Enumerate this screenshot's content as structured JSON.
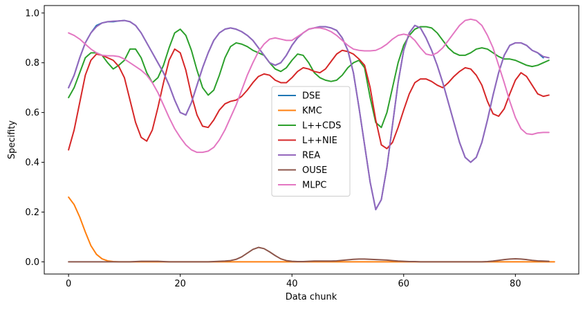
{
  "chart_data": {
    "type": "line",
    "xlabel": "Data chunk",
    "ylabel": "Specifity",
    "xlim": [
      -4.35,
      91.35
    ],
    "ylim": [
      -0.049,
      1.03
    ],
    "xticks": [
      0,
      20,
      40,
      60,
      80
    ],
    "yticks": [
      0.0,
      0.2,
      0.4,
      0.6,
      0.8,
      1.0
    ],
    "ytick_labels": [
      "0.0",
      "0.2",
      "0.4",
      "0.6",
      "0.8",
      "1.0"
    ],
    "grid": false,
    "legend_position": "center",
    "series": [
      {
        "name": "DSE",
        "color": "#1f77b4",
        "x_start": 0,
        "values": [
          0.7,
          0.75,
          0.82,
          0.88,
          0.92,
          0.95,
          0.96,
          0.965,
          0.965,
          0.968,
          0.97,
          0.965,
          0.95,
          0.92,
          0.88,
          0.84,
          0.8,
          0.76,
          0.71,
          0.65,
          0.6,
          0.59,
          0.64,
          0.71,
          0.78,
          0.84,
          0.89,
          0.92,
          0.935,
          0.94,
          0.935,
          0.925,
          0.91,
          0.89,
          0.86,
          0.83,
          0.8,
          0.79,
          0.8,
          0.83,
          0.87,
          0.9,
          0.92,
          0.935,
          0.94,
          0.945,
          0.945,
          0.94,
          0.93,
          0.9,
          0.85,
          0.76,
          0.62,
          0.47,
          0.32,
          0.21,
          0.25,
          0.38,
          0.55,
          0.72,
          0.85,
          0.92,
          0.95,
          0.94,
          0.9,
          0.85,
          0.79,
          0.72,
          0.64,
          0.56,
          0.48,
          0.42,
          0.4,
          0.42,
          0.48,
          0.57,
          0.67,
          0.76,
          0.83,
          0.87,
          0.88,
          0.88,
          0.87,
          0.85,
          0.84,
          0.82
        ]
      },
      {
        "name": "KMC",
        "color": "#ff7f0e",
        "x_start": 0,
        "values": [
          0.26,
          0.23,
          0.18,
          0.12,
          0.065,
          0.03,
          0.012,
          0.004,
          0.001,
          0,
          0,
          0,
          0,
          0,
          0,
          0,
          0,
          0,
          0,
          0,
          0,
          0,
          0,
          0,
          0,
          0,
          0,
          0,
          0,
          0,
          0,
          0,
          0,
          0,
          0,
          0,
          0,
          0,
          0,
          0,
          0,
          0,
          0,
          0,
          0,
          0,
          0,
          0,
          0,
          0,
          0,
          0,
          0,
          0,
          0,
          0,
          0,
          0,
          0,
          0,
          0,
          0,
          0,
          0,
          0,
          0,
          0,
          0,
          0,
          0,
          0,
          0,
          0,
          0,
          0,
          0,
          0,
          0,
          0,
          0,
          0,
          0,
          0,
          0,
          0,
          0,
          0,
          0
        ]
      },
      {
        "name": "L++CDS",
        "color": "#2ca02c",
        "x_start": 0,
        "values": [
          0.66,
          0.7,
          0.76,
          0.82,
          0.84,
          0.84,
          0.83,
          0.8,
          0.775,
          0.79,
          0.81,
          0.855,
          0.855,
          0.82,
          0.76,
          0.72,
          0.74,
          0.79,
          0.86,
          0.92,
          0.935,
          0.91,
          0.85,
          0.77,
          0.7,
          0.67,
          0.69,
          0.75,
          0.82,
          0.865,
          0.88,
          0.875,
          0.865,
          0.85,
          0.84,
          0.83,
          0.8,
          0.775,
          0.765,
          0.78,
          0.81,
          0.835,
          0.83,
          0.8,
          0.76,
          0.74,
          0.73,
          0.725,
          0.73,
          0.75,
          0.78,
          0.8,
          0.81,
          0.78,
          0.66,
          0.56,
          0.54,
          0.6,
          0.7,
          0.8,
          0.87,
          0.91,
          0.935,
          0.945,
          0.945,
          0.94,
          0.92,
          0.89,
          0.86,
          0.84,
          0.83,
          0.83,
          0.84,
          0.855,
          0.86,
          0.855,
          0.84,
          0.825,
          0.815,
          0.815,
          0.81,
          0.8,
          0.79,
          0.785,
          0.79,
          0.8,
          0.81
        ]
      },
      {
        "name": "L++NIE",
        "color": "#d62728",
        "x_start": 0,
        "values": [
          0.45,
          0.53,
          0.64,
          0.75,
          0.81,
          0.835,
          0.83,
          0.82,
          0.81,
          0.785,
          0.74,
          0.65,
          0.56,
          0.5,
          0.485,
          0.53,
          0.62,
          0.72,
          0.81,
          0.855,
          0.84,
          0.77,
          0.67,
          0.59,
          0.545,
          0.54,
          0.57,
          0.61,
          0.635,
          0.645,
          0.65,
          0.665,
          0.69,
          0.72,
          0.745,
          0.755,
          0.75,
          0.73,
          0.72,
          0.72,
          0.74,
          0.765,
          0.78,
          0.775,
          0.765,
          0.76,
          0.775,
          0.805,
          0.835,
          0.85,
          0.845,
          0.835,
          0.815,
          0.79,
          0.7,
          0.57,
          0.47,
          0.455,
          0.48,
          0.54,
          0.61,
          0.675,
          0.72,
          0.735,
          0.735,
          0.725,
          0.71,
          0.7,
          0.72,
          0.745,
          0.765,
          0.78,
          0.775,
          0.75,
          0.71,
          0.645,
          0.595,
          0.585,
          0.615,
          0.675,
          0.73,
          0.76,
          0.745,
          0.71,
          0.675,
          0.665,
          0.67
        ]
      },
      {
        "name": "REA",
        "color": "#9467bd",
        "x_start": 0,
        "values": [
          0.7,
          0.75,
          0.82,
          0.88,
          0.92,
          0.945,
          0.96,
          0.965,
          0.967,
          0.968,
          0.97,
          0.965,
          0.95,
          0.92,
          0.88,
          0.84,
          0.8,
          0.76,
          0.71,
          0.65,
          0.6,
          0.59,
          0.64,
          0.71,
          0.78,
          0.84,
          0.89,
          0.92,
          0.935,
          0.94,
          0.935,
          0.925,
          0.91,
          0.89,
          0.86,
          0.83,
          0.8,
          0.79,
          0.8,
          0.83,
          0.87,
          0.9,
          0.92,
          0.935,
          0.94,
          0.945,
          0.945,
          0.94,
          0.93,
          0.9,
          0.85,
          0.76,
          0.62,
          0.47,
          0.32,
          0.21,
          0.25,
          0.38,
          0.55,
          0.72,
          0.85,
          0.92,
          0.95,
          0.94,
          0.9,
          0.85,
          0.79,
          0.72,
          0.64,
          0.56,
          0.48,
          0.42,
          0.4,
          0.42,
          0.48,
          0.57,
          0.67,
          0.76,
          0.83,
          0.87,
          0.88,
          0.88,
          0.87,
          0.85,
          0.84,
          0.825,
          0.82
        ]
      },
      {
        "name": "OUSE",
        "color": "#8c564b",
        "x_start": 0,
        "values": [
          0,
          0,
          0,
          0,
          0,
          0,
          0,
          0,
          0,
          0,
          0,
          0,
          0.001,
          0.002,
          0.002,
          0.002,
          0.002,
          0.001,
          0,
          0,
          0,
          0,
          0,
          0,
          0,
          0,
          0.001,
          0.002,
          0.003,
          0.005,
          0.01,
          0.02,
          0.035,
          0.05,
          0.058,
          0.053,
          0.04,
          0.025,
          0.012,
          0.005,
          0.002,
          0.001,
          0.001,
          0.002,
          0.003,
          0.003,
          0.003,
          0.003,
          0.004,
          0.006,
          0.008,
          0.01,
          0.011,
          0.011,
          0.01,
          0.009,
          0.008,
          0.007,
          0.005,
          0.003,
          0.002,
          0.001,
          0.001,
          0,
          0,
          0,
          0,
          0,
          0,
          0,
          0,
          0,
          0,
          0,
          0,
          0.001,
          0.003,
          0.006,
          0.009,
          0.011,
          0.012,
          0.011,
          0.009,
          0.006,
          0.004,
          0.003,
          0.002
        ]
      },
      {
        "name": "MLPC",
        "color": "#e377c2",
        "x_start": 0,
        "values": [
          0.92,
          0.91,
          0.895,
          0.875,
          0.855,
          0.84,
          0.83,
          0.828,
          0.828,
          0.825,
          0.815,
          0.8,
          0.785,
          0.77,
          0.75,
          0.72,
          0.68,
          0.63,
          0.58,
          0.535,
          0.5,
          0.47,
          0.45,
          0.44,
          0.44,
          0.445,
          0.46,
          0.49,
          0.53,
          0.58,
          0.63,
          0.69,
          0.75,
          0.8,
          0.845,
          0.875,
          0.895,
          0.9,
          0.895,
          0.89,
          0.89,
          0.905,
          0.92,
          0.935,
          0.94,
          0.94,
          0.935,
          0.925,
          0.91,
          0.89,
          0.87,
          0.855,
          0.85,
          0.848,
          0.848,
          0.85,
          0.86,
          0.875,
          0.895,
          0.91,
          0.915,
          0.91,
          0.89,
          0.86,
          0.835,
          0.83,
          0.84,
          0.86,
          0.89,
          0.92,
          0.95,
          0.97,
          0.975,
          0.97,
          0.95,
          0.91,
          0.86,
          0.79,
          0.72,
          0.645,
          0.58,
          0.535,
          0.515,
          0.512,
          0.518,
          0.52,
          0.52
        ]
      }
    ]
  }
}
